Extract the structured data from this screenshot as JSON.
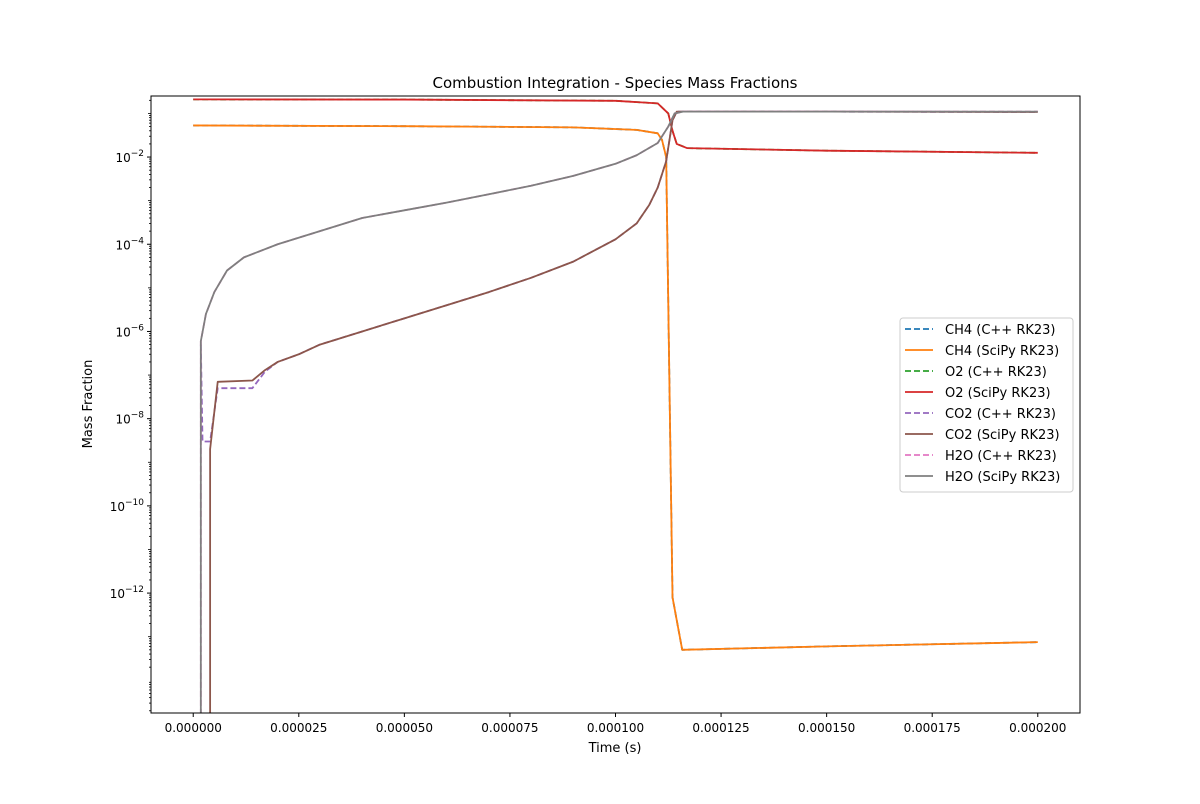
{
  "chart_data": {
    "type": "line",
    "title": "Combustion Integration - Species Mass Fractions",
    "xlabel": "Time (s)",
    "ylabel": "Mass Fraction",
    "yscale": "log",
    "xlim": [
      -1e-05,
      0.00021
    ],
    "ylim_exp": [
      -14.75,
      -0.6
    ],
    "grid": false,
    "legend_position": "center-right",
    "x_ticks": [
      "0.000000",
      "0.000025",
      "0.000050",
      "0.000075",
      "0.000100",
      "0.000125",
      "0.000150",
      "0.000175",
      "0.000200"
    ],
    "x_tick_values": [
      0,
      2.5e-05,
      5e-05,
      7.5e-05,
      0.0001,
      0.000125,
      0.00015,
      0.000175,
      0.0002
    ],
    "y_ticks": [
      {
        "base": "10",
        "exp": "−2",
        "value": 0.01
      },
      {
        "base": "10",
        "exp": "−4",
        "value": 0.0001
      },
      {
        "base": "10",
        "exp": "−6",
        "value": 1e-06
      },
      {
        "base": "10",
        "exp": "−8",
        "value": 1e-08
      },
      {
        "base": "10",
        "exp": "−10",
        "value": 1e-10
      },
      {
        "base": "10",
        "exp": "−12",
        "value": 1e-12
      }
    ],
    "series": [
      {
        "name": "CH4 (C++ RK23)",
        "color": "#1f77b4",
        "dash": true,
        "points": [
          [
            0,
            0.053
          ],
          [
            5e-05,
            0.051
          ],
          [
            9e-05,
            0.048
          ],
          [
            0.000105,
            0.042
          ],
          [
            0.00011,
            0.035
          ],
          [
            0.000111,
            0.025
          ],
          [
            0.000112,
            0.01
          ],
          [
            0.0001135,
            8e-13
          ],
          [
            0.0001158,
            5e-14
          ],
          [
            0.00015,
            6e-14
          ],
          [
            0.0002,
            7.5e-14
          ]
        ]
      },
      {
        "name": "CH4 (SciPy RK23)",
        "color": "#ff7f0e",
        "dash": false,
        "points": [
          [
            0,
            0.053
          ],
          [
            5e-05,
            0.051
          ],
          [
            9e-05,
            0.048
          ],
          [
            0.000105,
            0.042
          ],
          [
            0.00011,
            0.035
          ],
          [
            0.000111,
            0.025
          ],
          [
            0.000112,
            0.01
          ],
          [
            0.0001135,
            8e-13
          ],
          [
            0.0001158,
            5e-14
          ],
          [
            0.00015,
            6e-14
          ],
          [
            0.0002,
            7.5e-14
          ]
        ]
      },
      {
        "name": "O2 (C++ RK23)",
        "color": "#2ca02c",
        "dash": true,
        "points": [
          [
            0,
            0.21
          ],
          [
            5e-05,
            0.208
          ],
          [
            0.0001,
            0.195
          ],
          [
            0.00011,
            0.17
          ],
          [
            0.0001125,
            0.1
          ],
          [
            0.0001135,
            0.04
          ],
          [
            0.0001145,
            0.02
          ],
          [
            0.000117,
            0.016
          ],
          [
            0.00015,
            0.014
          ],
          [
            0.0002,
            0.0125
          ]
        ]
      },
      {
        "name": "O2 (SciPy RK23)",
        "color": "#d62728",
        "dash": false,
        "points": [
          [
            0,
            0.21
          ],
          [
            5e-05,
            0.208
          ],
          [
            0.0001,
            0.195
          ],
          [
            0.00011,
            0.17
          ],
          [
            0.0001125,
            0.1
          ],
          [
            0.0001135,
            0.04
          ],
          [
            0.0001145,
            0.02
          ],
          [
            0.000117,
            0.016
          ],
          [
            0.00015,
            0.014
          ],
          [
            0.0002,
            0.0125
          ]
        ]
      },
      {
        "name": "CO2 (C++ RK23)",
        "color": "#9467bd",
        "dash": true,
        "points": [
          [
            1.8e-06,
            5e-07
          ],
          [
            2.2e-06,
            3e-09
          ],
          [
            4e-06,
            3e-09
          ],
          [
            5.8e-06,
            5e-08
          ],
          [
            1.4e-05,
            5e-08
          ],
          [
            1.7e-05,
            1.2e-07
          ],
          [
            2e-05,
            2e-07
          ],
          [
            2.5e-05,
            3e-07
          ],
          [
            3e-05,
            5e-07
          ],
          [
            4e-05,
            1e-06
          ],
          [
            5e-05,
            2e-06
          ],
          [
            6e-05,
            4e-06
          ],
          [
            7e-05,
            8e-06
          ],
          [
            8e-05,
            1.7e-05
          ],
          [
            9e-05,
            4e-05
          ],
          [
            0.0001,
            0.00013
          ],
          [
            0.000105,
            0.0003
          ],
          [
            0.000108,
            0.0008
          ],
          [
            0.00011,
            0.002
          ],
          [
            0.000112,
            0.008
          ],
          [
            0.0001135,
            0.07
          ],
          [
            0.0001145,
            0.11
          ],
          [
            0.00015,
            0.11
          ],
          [
            0.0002,
            0.108
          ]
        ]
      },
      {
        "name": "CO2 (SciPy RK23)",
        "color": "#8c564b",
        "dash": false,
        "points": [
          [
            4e-06,
            1e-15
          ],
          [
            4e-06,
            2e-09
          ],
          [
            5.8e-06,
            7e-08
          ],
          [
            1.4e-05,
            7.5e-08
          ],
          [
            1.7e-05,
            1.3e-07
          ],
          [
            2e-05,
            2e-07
          ],
          [
            2.5e-05,
            3e-07
          ],
          [
            3e-05,
            5e-07
          ],
          [
            4e-05,
            1e-06
          ],
          [
            5e-05,
            2e-06
          ],
          [
            6e-05,
            4e-06
          ],
          [
            7e-05,
            8e-06
          ],
          [
            8e-05,
            1.7e-05
          ],
          [
            9e-05,
            4e-05
          ],
          [
            0.0001,
            0.00013
          ],
          [
            0.000105,
            0.0003
          ],
          [
            0.000108,
            0.0008
          ],
          [
            0.00011,
            0.002
          ],
          [
            0.000112,
            0.008
          ],
          [
            0.0001135,
            0.07
          ],
          [
            0.0001145,
            0.11
          ],
          [
            0.00015,
            0.11
          ],
          [
            0.0002,
            0.108
          ]
        ]
      },
      {
        "name": "H2O (C++ RK23)",
        "color": "#e377c2",
        "dash": true,
        "points": [
          [
            1.8e-06,
            1e-15
          ],
          [
            1.8e-06,
            6e-07
          ],
          [
            3e-06,
            2.5e-06
          ],
          [
            5e-06,
            8e-06
          ],
          [
            8e-06,
            2.5e-05
          ],
          [
            1.2e-05,
            5e-05
          ],
          [
            2e-05,
            0.0001
          ],
          [
            3e-05,
            0.0002
          ],
          [
            4e-05,
            0.0004
          ],
          [
            5e-05,
            0.0006
          ],
          [
            6e-05,
            0.0009
          ],
          [
            7e-05,
            0.0014
          ],
          [
            8e-05,
            0.0022
          ],
          [
            9e-05,
            0.0037
          ],
          [
            0.0001,
            0.007
          ],
          [
            0.000105,
            0.011
          ],
          [
            0.00011,
            0.021
          ],
          [
            0.0001125,
            0.05
          ],
          [
            0.000114,
            0.1
          ],
          [
            0.000116,
            0.11
          ],
          [
            0.00015,
            0.11
          ],
          [
            0.0002,
            0.11
          ]
        ]
      },
      {
        "name": "H2O (SciPy RK23)",
        "color": "#7f7f7f",
        "dash": false,
        "points": [
          [
            1.8e-06,
            1e-15
          ],
          [
            1.8e-06,
            6e-07
          ],
          [
            3e-06,
            2.5e-06
          ],
          [
            5e-06,
            8e-06
          ],
          [
            8e-06,
            2.5e-05
          ],
          [
            1.2e-05,
            5e-05
          ],
          [
            2e-05,
            0.0001
          ],
          [
            3e-05,
            0.0002
          ],
          [
            4e-05,
            0.0004
          ],
          [
            5e-05,
            0.0006
          ],
          [
            6e-05,
            0.0009
          ],
          [
            7e-05,
            0.0014
          ],
          [
            8e-05,
            0.0022
          ],
          [
            9e-05,
            0.0037
          ],
          [
            0.0001,
            0.007
          ],
          [
            0.000105,
            0.011
          ],
          [
            0.00011,
            0.021
          ],
          [
            0.0001125,
            0.05
          ],
          [
            0.000114,
            0.1
          ],
          [
            0.000116,
            0.11
          ],
          [
            0.00015,
            0.11
          ],
          [
            0.0002,
            0.11
          ]
        ]
      }
    ]
  }
}
